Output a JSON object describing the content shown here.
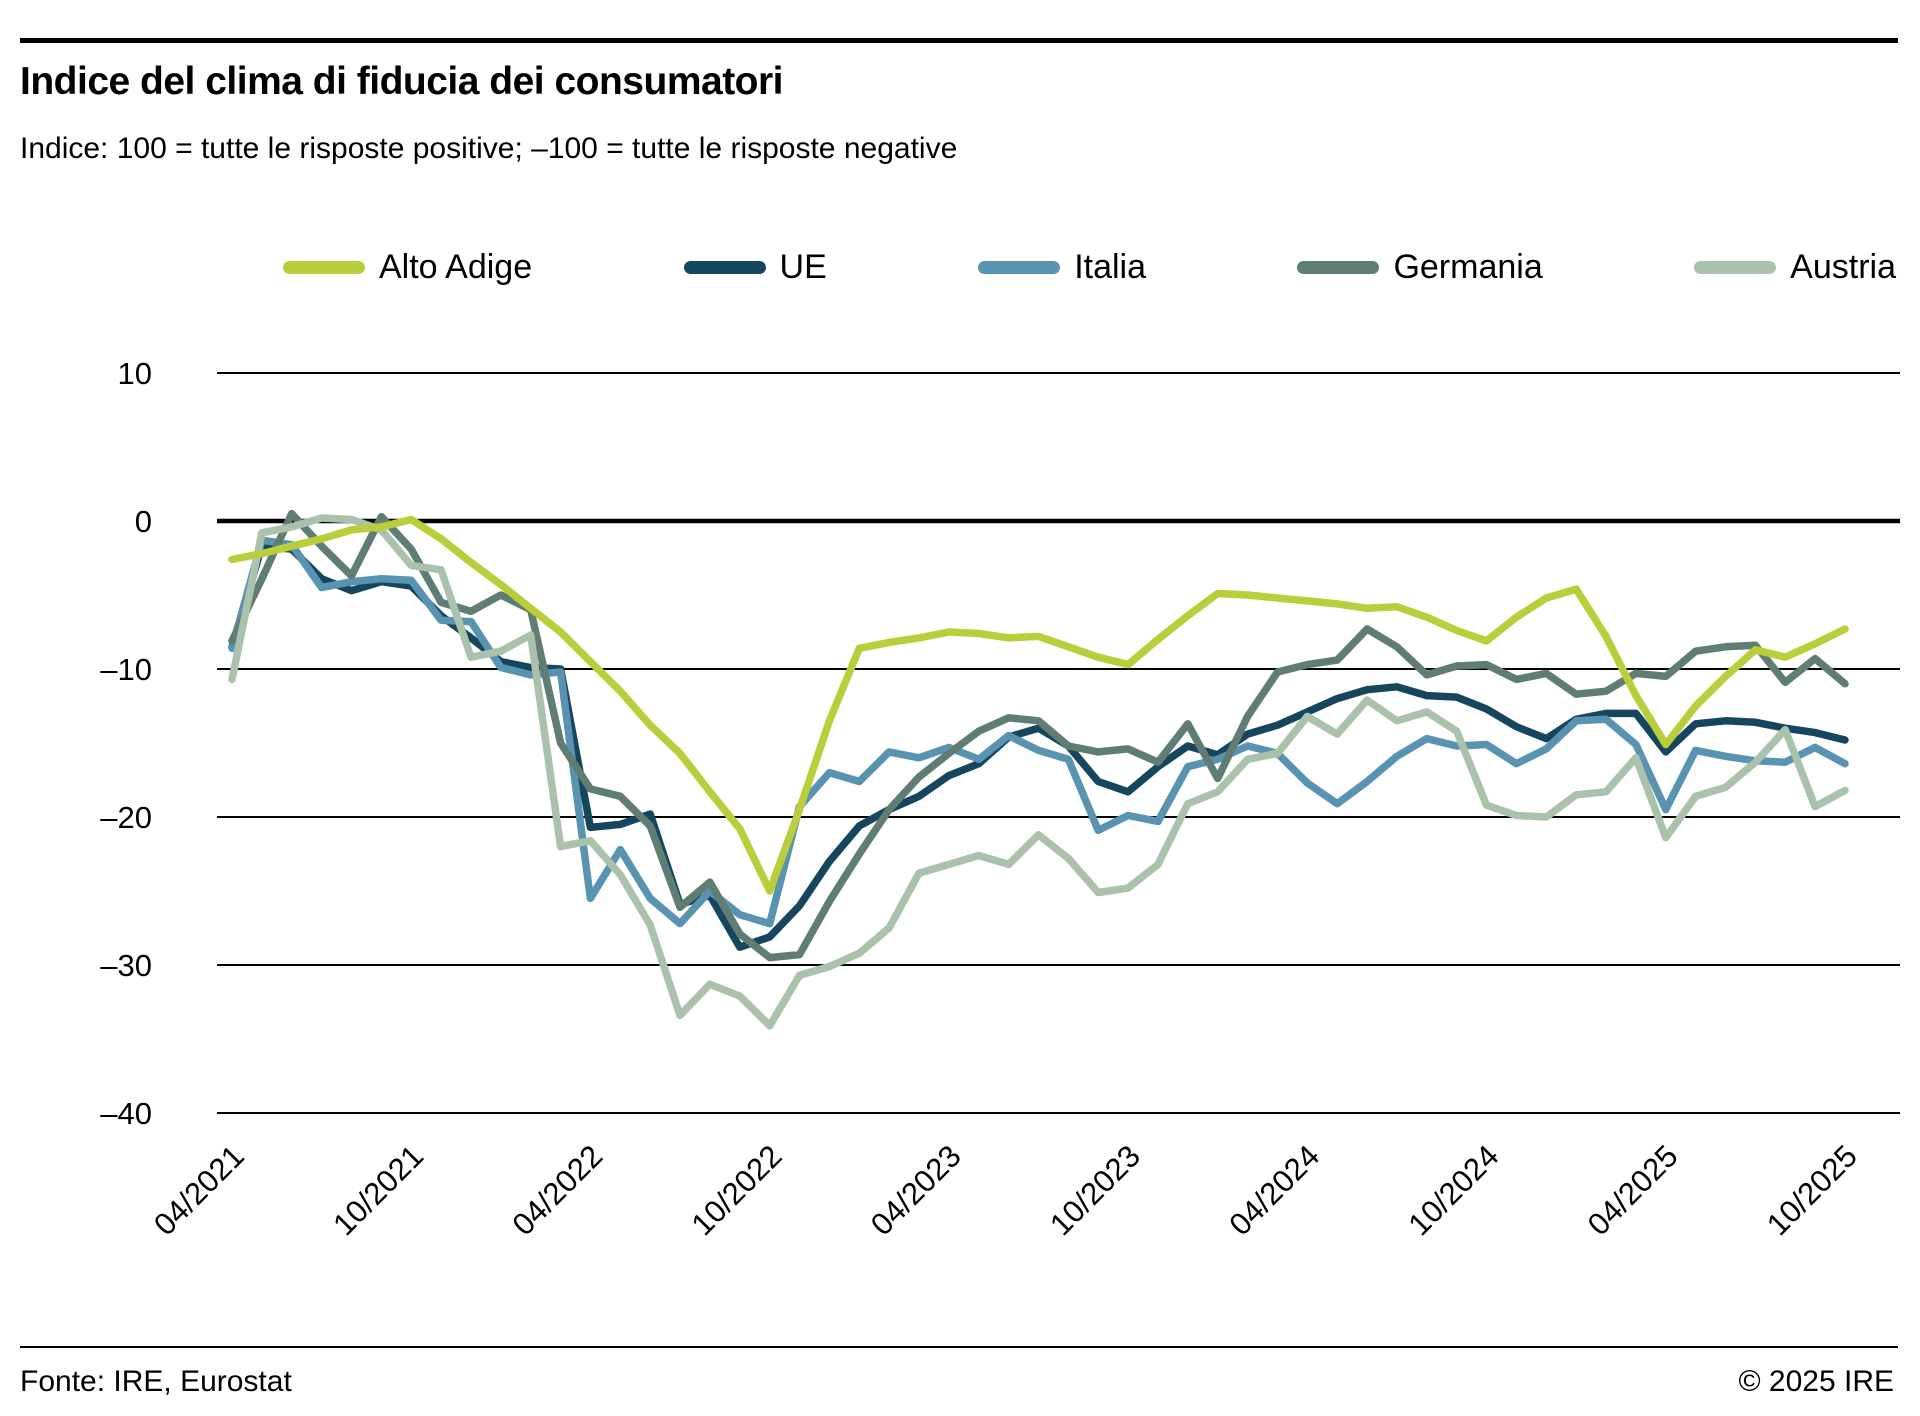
{
  "header": {
    "title": "Indice del clima di fiducia dei consumatori",
    "subtitle": "Indice: 100 = tutte le risposte positive; –100 =  tutte le risposte negative"
  },
  "legend": [
    {
      "label": "Alto Adige",
      "slug": "alto-adige",
      "color": "#bacd3a"
    },
    {
      "label": "UE",
      "slug": "ue",
      "color": "#16465e"
    },
    {
      "label": "Italia",
      "slug": "italia",
      "color": "#5993b2"
    },
    {
      "label": "Germania",
      "slug": "germania",
      "color": "#607d74"
    },
    {
      "label": "Austria",
      "slug": "austria",
      "color": "#aac2ab"
    }
  ],
  "footer": {
    "source": "Fonte: IRE, Eurostat",
    "copyright": "© 2025 IRE"
  },
  "chart_data": {
    "type": "line",
    "title": "Indice del clima di fiducia dei consumatori",
    "xlabel": "",
    "ylabel": "",
    "ylim": [
      -40,
      10
    ],
    "y_ticks": [
      10,
      0,
      -10,
      -20,
      -30,
      -40
    ],
    "grid": "horizontal",
    "legend_position": "top",
    "x": [
      "04/2021",
      "05/2021",
      "06/2021",
      "07/2021",
      "08/2021",
      "09/2021",
      "10/2021",
      "11/2021",
      "12/2021",
      "01/2022",
      "02/2022",
      "03/2022",
      "04/2022",
      "05/2022",
      "06/2022",
      "07/2022",
      "08/2022",
      "09/2022",
      "10/2022",
      "11/2022",
      "12/2022",
      "01/2023",
      "02/2023",
      "03/2023",
      "04/2023",
      "05/2023",
      "06/2023",
      "07/2023",
      "08/2023",
      "09/2023",
      "10/2023",
      "11/2023",
      "12/2023",
      "01/2024",
      "02/2024",
      "03/2024",
      "04/2024",
      "05/2024",
      "06/2024",
      "07/2024",
      "08/2024",
      "09/2024",
      "10/2024",
      "11/2024",
      "12/2024",
      "01/2025",
      "02/2025",
      "03/2025",
      "04/2025",
      "05/2025",
      "06/2025",
      "07/2025",
      "08/2025",
      "09/2025",
      "10/2025"
    ],
    "x_tick_labels": [
      "04/2021",
      "10/2021",
      "04/2022",
      "10/2022",
      "04/2023",
      "10/2023",
      "04/2024",
      "10/2024",
      "04/2025",
      "10/2025"
    ],
    "series": [
      {
        "name": "Alto Adige",
        "slug": "alto-adige",
        "color": "#bacd3a",
        "values": [
          -2.6,
          -2.2,
          -1.7,
          -1.2,
          -0.6,
          -0.4,
          0.1,
          -1.2,
          -2.8,
          -4.3,
          -5.9,
          -7.5,
          -9.5,
          -11.5,
          -13.8,
          -15.7,
          -18.3,
          -20.8,
          -25.0,
          -19.5,
          -13.5,
          -8.6,
          -8.2,
          -7.9,
          -7.5,
          -7.6,
          -7.9,
          -7.8,
          -8.5,
          -9.2,
          -9.7,
          -8.0,
          -6.4,
          -4.9,
          -5.0,
          -5.2,
          -5.4,
          -5.6,
          -5.9,
          -5.8,
          -6.5,
          -7.4,
          -8.1,
          -6.5,
          -5.2,
          -4.6,
          -7.8,
          -11.8,
          -15.1,
          -12.5,
          -10.5,
          -8.7,
          -9.2,
          -8.3,
          -7.3
        ]
      },
      {
        "name": "UE",
        "slug": "ue",
        "color": "#16465e",
        "values": [
          -8.5,
          -1.7,
          -1.9,
          -3.9,
          -4.7,
          -4.1,
          -4.4,
          -6.4,
          -7.9,
          -9.5,
          -9.9,
          -10.0,
          -20.7,
          -20.5,
          -19.8,
          -25.9,
          -25.3,
          -28.8,
          -28.1,
          -26.0,
          -23.0,
          -20.6,
          -19.5,
          -18.6,
          -17.2,
          -16.4,
          -14.6,
          -14.0,
          -15.2,
          -17.6,
          -18.3,
          -16.6,
          -15.2,
          -15.8,
          -14.4,
          -13.8,
          -12.9,
          -12.0,
          -11.4,
          -11.2,
          -11.8,
          -11.9,
          -12.7,
          -13.9,
          -14.7,
          -13.4,
          -13.0,
          -13.0,
          -15.6,
          -13.7,
          -13.5,
          -13.6,
          -14.0,
          -14.3,
          -14.8
        ]
      },
      {
        "name": "Italia",
        "slug": "italia",
        "color": "#5993b2",
        "values": [
          -8.6,
          -1.3,
          -1.6,
          -4.5,
          -4.1,
          -3.9,
          -4.0,
          -6.7,
          -6.8,
          -9.9,
          -10.4,
          -10.2,
          -25.5,
          -22.2,
          -25.5,
          -27.2,
          -25.0,
          -26.6,
          -27.2,
          -19.3,
          -17.0,
          -17.6,
          -15.6,
          -16.0,
          -15.3,
          -16.1,
          -14.5,
          -15.5,
          -16.1,
          -20.9,
          -19.9,
          -20.3,
          -16.6,
          -16.1,
          -15.2,
          -15.7,
          -17.7,
          -19.1,
          -17.6,
          -15.9,
          -14.7,
          -15.2,
          -15.1,
          -16.4,
          -15.4,
          -13.5,
          -13.4,
          -15.1,
          -19.5,
          -15.5,
          -15.9,
          -16.2,
          -16.3,
          -15.3,
          -16.4
        ]
      },
      {
        "name": "Germania",
        "slug": "germania",
        "color": "#607d74",
        "values": [
          -8.1,
          -3.9,
          0.5,
          -1.7,
          -3.7,
          0.3,
          -1.9,
          -5.5,
          -6.1,
          -5.0,
          -6.0,
          -15.0,
          -18.1,
          -18.6,
          -20.6,
          -26.1,
          -24.4,
          -27.9,
          -29.5,
          -29.3,
          -25.7,
          -22.5,
          -19.5,
          -17.3,
          -15.7,
          -14.2,
          -13.3,
          -13.5,
          -15.2,
          -15.6,
          -15.4,
          -16.3,
          -13.7,
          -17.4,
          -13.2,
          -10.2,
          -9.7,
          -9.4,
          -7.3,
          -8.5,
          -10.4,
          -9.8,
          -9.7,
          -10.7,
          -10.3,
          -11.7,
          -11.5,
          -10.3,
          -10.5,
          -8.8,
          -8.5,
          -8.4,
          -10.9,
          -9.3,
          -11.0
        ]
      },
      {
        "name": "Austria",
        "slug": "austria",
        "color": "#aac2ab",
        "values": [
          -10.7,
          -0.8,
          -0.4,
          0.2,
          0.1,
          -0.6,
          -3.0,
          -3.3,
          -9.2,
          -8.8,
          -7.7,
          -22.0,
          -21.6,
          -23.9,
          -27.3,
          -33.4,
          -31.3,
          -32.1,
          -34.1,
          -30.7,
          -30.1,
          -29.2,
          -27.5,
          -23.8,
          -23.2,
          -22.6,
          -23.2,
          -21.2,
          -22.8,
          -25.1,
          -24.8,
          -23.2,
          -19.1,
          -18.3,
          -16.1,
          -15.7,
          -13.2,
          -14.4,
          -12.1,
          -13.5,
          -12.9,
          -14.2,
          -19.2,
          -19.9,
          -20.0,
          -18.5,
          -18.3,
          -16.0,
          -21.4,
          -18.6,
          -18.0,
          -16.3,
          -14.1,
          -19.3,
          -18.2
        ]
      }
    ]
  }
}
